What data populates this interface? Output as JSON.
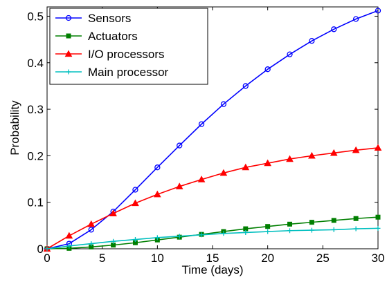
{
  "chart_data": {
    "type": "line",
    "xlabel": "Time (days)",
    "ylabel": "Probability",
    "xlim": [
      0,
      30
    ],
    "ylim": [
      0,
      0.52
    ],
    "xticks": [
      0,
      5,
      10,
      15,
      20,
      25,
      30
    ],
    "xtick_labels": [
      "0",
      "5",
      "10",
      "15",
      "20",
      "25",
      "30"
    ],
    "yticks": [
      0,
      0.1,
      0.2,
      0.3,
      0.4,
      0.5
    ],
    "ytick_labels": [
      "0",
      "0.1",
      "0.2",
      "0.3",
      "0.4",
      "0.5"
    ],
    "grid": false,
    "legend_position": "top-left",
    "x": [
      0,
      2,
      4,
      6,
      8,
      10,
      12,
      14,
      16,
      18,
      20,
      22,
      24,
      26,
      28,
      30
    ],
    "series": [
      {
        "name": "Sensors",
        "color": "#0000ff",
        "marker": "circle",
        "values": [
          0.0,
          0.011,
          0.041,
          0.08,
          0.127,
          0.175,
          0.222,
          0.268,
          0.311,
          0.35,
          0.386,
          0.418,
          0.447,
          0.472,
          0.494,
          0.512
        ]
      },
      {
        "name": "Actuators",
        "color": "#007f00",
        "marker": "square",
        "values": [
          0.0,
          0.001,
          0.004,
          0.008,
          0.013,
          0.019,
          0.025,
          0.031,
          0.037,
          0.043,
          0.048,
          0.053,
          0.057,
          0.061,
          0.065,
          0.068
        ]
      },
      {
        "name": "I/O processors",
        "color": "#ff0000",
        "marker": "triangle",
        "values": [
          0.0,
          0.028,
          0.053,
          0.076,
          0.098,
          0.117,
          0.134,
          0.149,
          0.163,
          0.175,
          0.184,
          0.193,
          0.2,
          0.206,
          0.212,
          0.217
        ]
      },
      {
        "name": "Main processor",
        "color": "#00bfbf",
        "marker": "plus",
        "values": [
          0.0,
          0.006,
          0.011,
          0.016,
          0.02,
          0.024,
          0.027,
          0.03,
          0.033,
          0.035,
          0.037,
          0.039,
          0.04,
          0.041,
          0.043,
          0.044
        ]
      }
    ]
  }
}
